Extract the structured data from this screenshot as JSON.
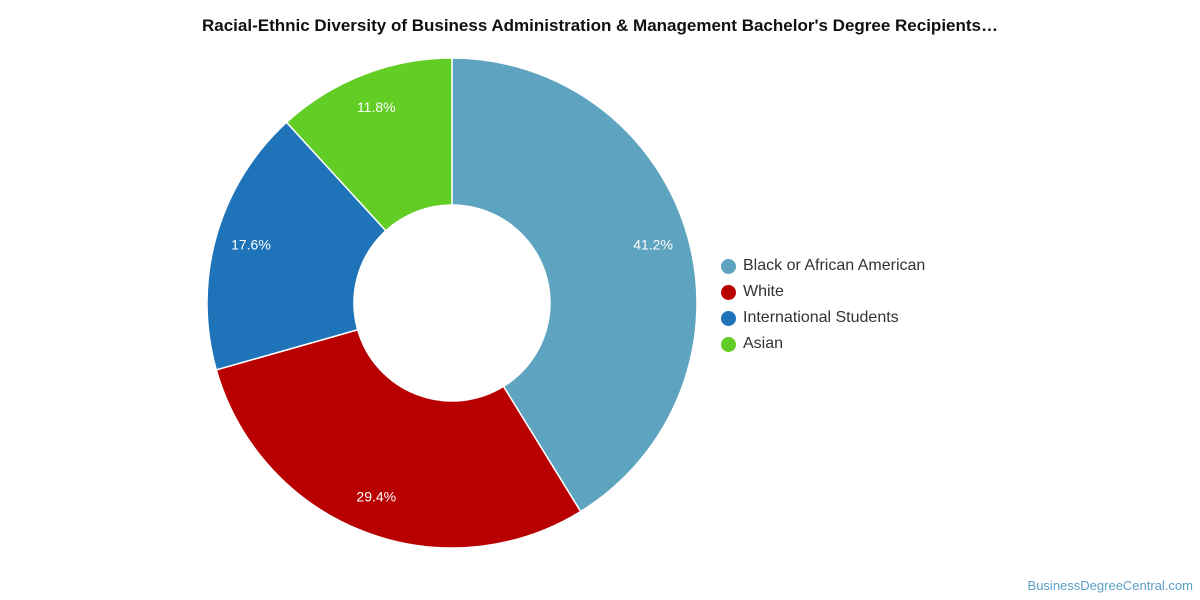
{
  "chart_data": {
    "type": "pie",
    "title": "Racial-Ethnic Diversity of Business Administration & Management Bachelor's Degree Recipients…",
    "donut": true,
    "legend_position": "right",
    "slices": [
      {
        "label": "Black or African American",
        "value": 41.2,
        "value_label": "41.2%",
        "color": "#5ea3bf"
      },
      {
        "label": "White",
        "value": 29.4,
        "value_label": "29.4%",
        "color": "#b90000"
      },
      {
        "label": "International Students",
        "value": 17.6,
        "value_label": "17.6%",
        "color": "#1e73b9"
      },
      {
        "label": "Asian",
        "value": 11.8,
        "value_label": "11.8%",
        "color": "#62cd25"
      }
    ]
  },
  "watermark": "BusinessDegreeCentral.com"
}
